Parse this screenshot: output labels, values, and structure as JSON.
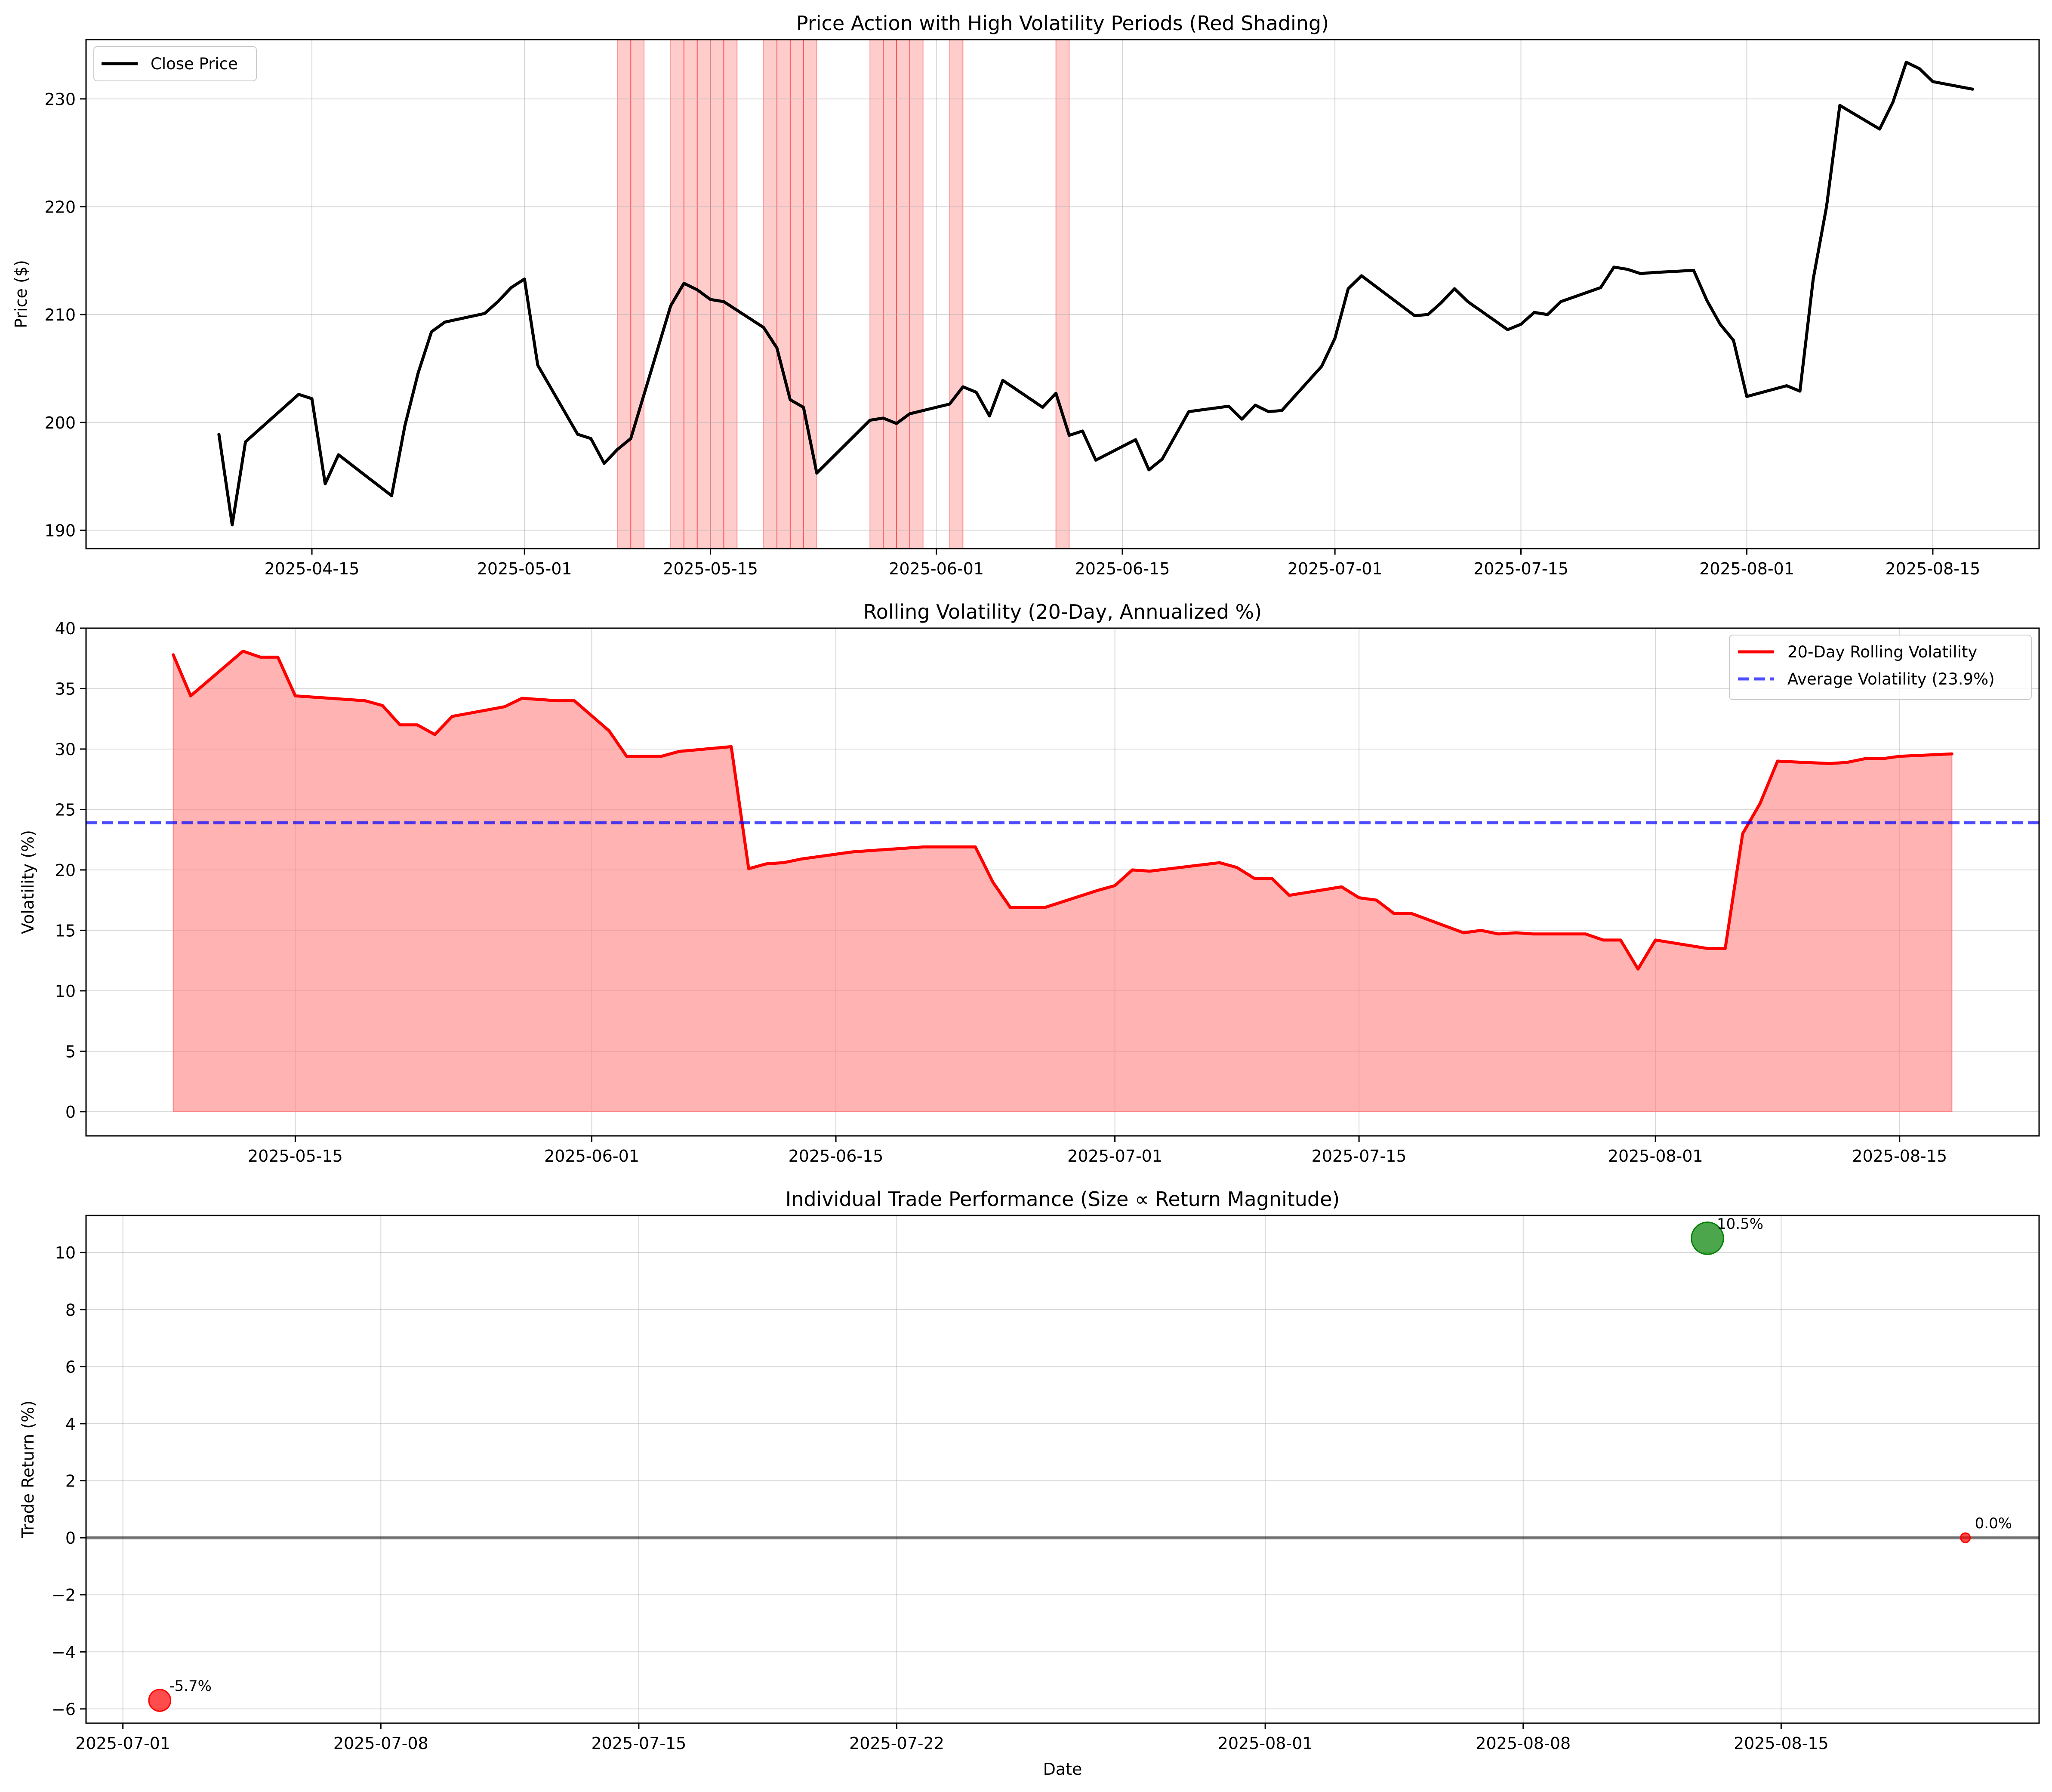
{
  "chart_data": [
    {
      "type": "line",
      "title": "Price Action with High Volatility Periods (Red Shading)",
      "xlabel": "",
      "ylabel": "Price ($)",
      "xlim": [
        "2025-03-29",
        "2025-08-23"
      ],
      "ylim": [
        188.3,
        235.5
      ],
      "x_ticks": [
        "2025-04-15",
        "2025-05-01",
        "2025-05-15",
        "2025-06-01",
        "2025-06-15",
        "2025-07-01",
        "2025-07-15",
        "2025-08-01",
        "2025-08-15"
      ],
      "y_ticks": [
        190,
        200,
        210,
        220,
        230
      ],
      "grid": true,
      "legend": {
        "position": "upper-left",
        "entries": [
          "Close Price"
        ]
      },
      "series": [
        {
          "name": "Close Price",
          "color": "#000000",
          "points": [
            [
              "2025-04-08",
              198.9
            ],
            [
              "2025-04-09",
              190.5
            ],
            [
              "2025-04-10",
              198.2
            ],
            [
              "2025-04-14",
              202.6
            ],
            [
              "2025-04-15",
              202.2
            ],
            [
              "2025-04-16",
              194.3
            ],
            [
              "2025-04-17",
              197.0
            ],
            [
              "2025-04-21",
              193.2
            ],
            [
              "2025-04-22",
              199.7
            ],
            [
              "2025-04-23",
              204.6
            ],
            [
              "2025-04-24",
              208.4
            ],
            [
              "2025-04-25",
              209.3
            ],
            [
              "2025-04-28",
              210.1
            ],
            [
              "2025-04-29",
              211.2
            ],
            [
              "2025-04-30",
              212.5
            ],
            [
              "2025-05-01",
              213.3
            ],
            [
              "2025-05-02",
              205.3
            ],
            [
              "2025-05-05",
              198.9
            ],
            [
              "2025-05-06",
              198.5
            ],
            [
              "2025-05-07",
              196.2
            ],
            [
              "2025-05-08",
              197.5
            ],
            [
              "2025-05-09",
              198.5
            ],
            [
              "2025-05-12",
              210.8
            ],
            [
              "2025-05-13",
              212.9
            ],
            [
              "2025-05-14",
              212.3
            ],
            [
              "2025-05-15",
              211.4
            ],
            [
              "2025-05-16",
              211.2
            ],
            [
              "2025-05-19",
              208.8
            ],
            [
              "2025-05-20",
              206.9
            ],
            [
              "2025-05-21",
              202.1
            ],
            [
              "2025-05-22",
              201.4
            ],
            [
              "2025-05-23",
              195.3
            ],
            [
              "2025-05-27",
              200.2
            ],
            [
              "2025-05-28",
              200.4
            ],
            [
              "2025-05-29",
              199.9
            ],
            [
              "2025-05-30",
              200.8
            ],
            [
              "2025-06-02",
              201.7
            ],
            [
              "2025-06-03",
              203.3
            ],
            [
              "2025-06-04",
              202.8
            ],
            [
              "2025-06-05",
              200.6
            ],
            [
              "2025-06-06",
              203.9
            ],
            [
              "2025-06-09",
              201.4
            ],
            [
              "2025-06-10",
              202.7
            ],
            [
              "2025-06-11",
              198.8
            ],
            [
              "2025-06-12",
              199.2
            ],
            [
              "2025-06-13",
              196.5
            ],
            [
              "2025-06-16",
              198.4
            ],
            [
              "2025-06-17",
              195.6
            ],
            [
              "2025-06-18",
              196.6
            ],
            [
              "2025-06-20",
              201.0
            ],
            [
              "2025-06-23",
              201.5
            ],
            [
              "2025-06-24",
              200.3
            ],
            [
              "2025-06-25",
              201.6
            ],
            [
              "2025-06-26",
              201.0
            ],
            [
              "2025-06-27",
              201.1
            ],
            [
              "2025-06-30",
              205.2
            ],
            [
              "2025-07-01",
              207.8
            ],
            [
              "2025-07-02",
              212.4
            ],
            [
              "2025-07-03",
              213.6
            ],
            [
              "2025-07-07",
              209.9
            ],
            [
              "2025-07-08",
              210.0
            ],
            [
              "2025-07-09",
              211.1
            ],
            [
              "2025-07-10",
              212.4
            ],
            [
              "2025-07-11",
              211.2
            ],
            [
              "2025-07-14",
              208.6
            ],
            [
              "2025-07-15",
              209.1
            ],
            [
              "2025-07-16",
              210.2
            ],
            [
              "2025-07-17",
              210.0
            ],
            [
              "2025-07-18",
              211.2
            ],
            [
              "2025-07-21",
              212.5
            ],
            [
              "2025-07-22",
              214.4
            ],
            [
              "2025-07-23",
              214.2
            ],
            [
              "2025-07-24",
              213.8
            ],
            [
              "2025-07-25",
              213.9
            ],
            [
              "2025-07-28",
              214.1
            ],
            [
              "2025-07-29",
              211.3
            ],
            [
              "2025-07-30",
              209.1
            ],
            [
              "2025-07-31",
              207.6
            ],
            [
              "2025-08-01",
              202.4
            ],
            [
              "2025-08-04",
              203.4
            ],
            [
              "2025-08-05",
              202.9
            ],
            [
              "2025-08-06",
              213.3
            ],
            [
              "2025-08-07",
              220.0
            ],
            [
              "2025-08-08",
              229.4
            ],
            [
              "2025-08-11",
              227.2
            ],
            [
              "2025-08-12",
              229.7
            ],
            [
              "2025-08-13",
              233.4
            ],
            [
              "2025-08-14",
              232.8
            ],
            [
              "2025-08-15",
              231.6
            ],
            [
              "2025-08-18",
              230.9
            ]
          ]
        }
      ],
      "shaded_regions": {
        "color": "#ff0000",
        "dates": [
          "2025-05-08",
          "2025-05-09",
          "2025-05-12",
          "2025-05-13",
          "2025-05-14",
          "2025-05-15",
          "2025-05-16",
          "2025-05-19",
          "2025-05-20",
          "2025-05-21",
          "2025-05-22",
          "2025-05-27",
          "2025-05-28",
          "2025-05-29",
          "2025-05-30",
          "2025-06-02",
          "2025-06-10"
        ]
      }
    },
    {
      "type": "area",
      "title": "Rolling Volatility (20-Day, Annualized %)",
      "xlabel": "",
      "ylabel": "Volatility (%)",
      "xlim": [
        "2025-05-03",
        "2025-08-23"
      ],
      "ylim": [
        -2,
        40
      ],
      "x_ticks": [
        "2025-05-15",
        "2025-06-01",
        "2025-06-15",
        "2025-07-01",
        "2025-07-15",
        "2025-08-01",
        "2025-08-15"
      ],
      "y_ticks": [
        0,
        5,
        10,
        15,
        20,
        25,
        30,
        35,
        40
      ],
      "grid": true,
      "legend": {
        "position": "upper-right",
        "entries": [
          "20-Day Rolling Volatility",
          "Average Volatility (23.9%)"
        ]
      },
      "series": [
        {
          "name": "20-Day Rolling Volatility",
          "color": "#ff0000",
          "fill_color": "#ff8080",
          "points": [
            [
              "2025-05-08",
              37.8
            ],
            [
              "2025-05-09",
              34.4
            ],
            [
              "2025-05-12",
              38.1
            ],
            [
              "2025-05-13",
              37.6
            ],
            [
              "2025-05-14",
              37.6
            ],
            [
              "2025-05-15",
              34.4
            ],
            [
              "2025-05-19",
              34.0
            ],
            [
              "2025-05-20",
              33.6
            ],
            [
              "2025-05-21",
              32.0
            ],
            [
              "2025-05-22",
              32.0
            ],
            [
              "2025-05-23",
              31.2
            ],
            [
              "2025-05-24",
              32.7
            ],
            [
              "2025-05-27",
              33.5
            ],
            [
              "2025-05-28",
              34.2
            ],
            [
              "2025-05-29",
              34.1
            ],
            [
              "2025-05-30",
              34.0
            ],
            [
              "2025-05-31",
              34.0
            ],
            [
              "2025-06-02",
              31.5
            ],
            [
              "2025-06-03",
              29.4
            ],
            [
              "2025-06-04",
              29.4
            ],
            [
              "2025-06-05",
              29.4
            ],
            [
              "2025-06-06",
              29.8
            ],
            [
              "2025-06-09",
              30.2
            ],
            [
              "2025-06-10",
              20.1
            ],
            [
              "2025-06-11",
              20.5
            ],
            [
              "2025-06-12",
              20.6
            ],
            [
              "2025-06-13",
              20.9
            ],
            [
              "2025-06-16",
              21.5
            ],
            [
              "2025-06-17",
              21.6
            ],
            [
              "2025-06-18",
              21.7
            ],
            [
              "2025-06-20",
              21.9
            ],
            [
              "2025-06-23",
              21.9
            ],
            [
              "2025-06-24",
              19.0
            ],
            [
              "2025-06-25",
              16.9
            ],
            [
              "2025-06-26",
              16.9
            ],
            [
              "2025-06-27",
              16.9
            ],
            [
              "2025-06-30",
              18.3
            ],
            [
              "2025-07-01",
              18.7
            ],
            [
              "2025-07-02",
              20.0
            ],
            [
              "2025-07-03",
              19.9
            ],
            [
              "2025-07-07",
              20.6
            ],
            [
              "2025-07-08",
              20.2
            ],
            [
              "2025-07-09",
              19.3
            ],
            [
              "2025-07-10",
              19.3
            ],
            [
              "2025-07-11",
              17.9
            ],
            [
              "2025-07-14",
              18.6
            ],
            [
              "2025-07-15",
              17.7
            ],
            [
              "2025-07-16",
              17.5
            ],
            [
              "2025-07-17",
              16.4
            ],
            [
              "2025-07-18",
              16.4
            ],
            [
              "2025-07-21",
              14.8
            ],
            [
              "2025-07-22",
              15.0
            ],
            [
              "2025-07-23",
              14.7
            ],
            [
              "2025-07-24",
              14.8
            ],
            [
              "2025-07-25",
              14.7
            ],
            [
              "2025-07-28",
              14.7
            ],
            [
              "2025-07-29",
              14.2
            ],
            [
              "2025-07-30",
              14.2
            ],
            [
              "2025-07-31",
              11.8
            ],
            [
              "2025-08-01",
              14.2
            ],
            [
              "2025-08-04",
              13.5
            ],
            [
              "2025-08-05",
              13.5
            ],
            [
              "2025-08-06",
              23.0
            ],
            [
              "2025-08-07",
              25.5
            ],
            [
              "2025-08-08",
              29.0
            ],
            [
              "2025-08-11",
              28.8
            ],
            [
              "2025-08-12",
              28.9
            ],
            [
              "2025-08-13",
              29.2
            ],
            [
              "2025-08-14",
              29.2
            ],
            [
              "2025-08-15",
              29.4
            ],
            [
              "2025-08-18",
              29.6
            ]
          ]
        },
        {
          "name": "Average Volatility (23.9%)",
          "color": "#0000ff",
          "style": "dashed",
          "hline": 23.9
        }
      ]
    },
    {
      "type": "scatter",
      "title": "Individual Trade Performance (Size ∝ Return Magnitude)",
      "xlabel": "Date",
      "ylabel": "Trade Return (%)",
      "xlim": [
        "2025-06-30",
        "2025-08-22"
      ],
      "ylim": [
        -6.5,
        11.3
      ],
      "x_ticks": [
        "2025-07-01",
        "2025-07-08",
        "2025-07-15",
        "2025-07-22",
        "2025-08-01",
        "2025-08-08",
        "2025-08-15"
      ],
      "y_ticks": [
        -6,
        -4,
        -2,
        0,
        2,
        4,
        6,
        8,
        10
      ],
      "grid": true,
      "baseline": 0,
      "points": [
        {
          "x": "2025-07-02",
          "y": -5.7,
          "label": "-5.7%",
          "color": "#ff0000"
        },
        {
          "x": "2025-08-13",
          "y": 10.5,
          "label": "10.5%",
          "color": "#008000"
        },
        {
          "x": "2025-08-20",
          "y": 0.0,
          "label": "0.0%",
          "color": "#ff0000"
        }
      ]
    }
  ]
}
